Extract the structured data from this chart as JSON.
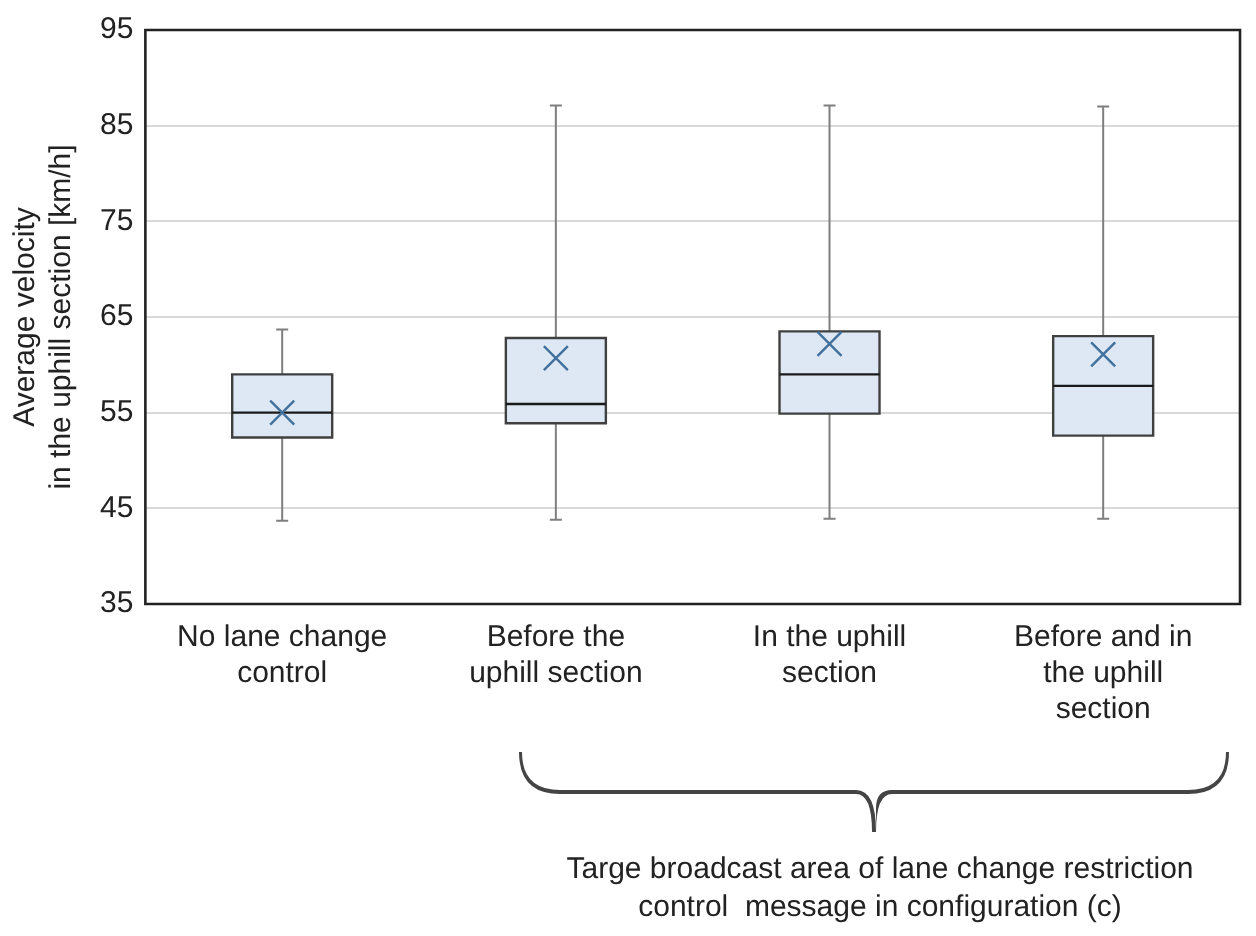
{
  "chart_data": {
    "type": "box",
    "ylabel": "Average velocity\nin the uphill section [km/h]",
    "categories": [
      "No lane change control",
      "Before the uphill section",
      "In the uphill section",
      "Before and in the uphill section"
    ],
    "color": "#dde8f4",
    "boxes": [
      {
        "low": 43.7,
        "q1": 52.4,
        "median": 55.0,
        "q3": 59.0,
        "high": 63.7,
        "mean": 55.0
      },
      {
        "low": 43.8,
        "q1": 53.9,
        "median": 55.9,
        "q3": 62.8,
        "high": 87.1,
        "mean": 60.7
      },
      {
        "low": 43.9,
        "q1": 54.9,
        "median": 59.0,
        "q3": 63.5,
        "high": 87.1,
        "mean": 62.2
      },
      {
        "low": 43.9,
        "q1": 52.6,
        "median": 57.8,
        "q3": 63.0,
        "high": 87.0,
        "mean": 61.1
      }
    ],
    "ylim": [
      35,
      95
    ],
    "yticks": [
      35,
      45,
      55,
      65,
      75,
      85,
      95
    ],
    "grid": "y",
    "legend": false,
    "annotations": [
      "Targe broadcast area of lane change restriction\ncontrol  message in configuration (c)"
    ]
  }
}
